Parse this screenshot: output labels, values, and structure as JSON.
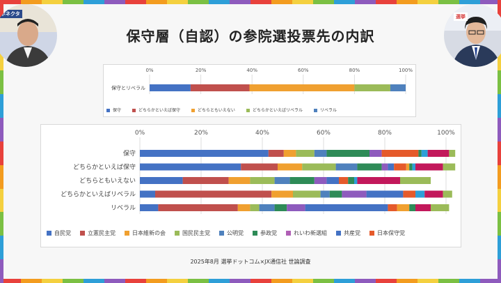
{
  "title": "保守層（自認）の参院選投票先の内訳",
  "footer": "2025年8月 選挙ドットコム×JX通信社 世論調査",
  "logo_text": "ボネクタ",
  "overlay_badge": "選挙",
  "colors": {
    "border": [
      "#e8413c",
      "#f39c1f",
      "#f4d03f",
      "#7bc043",
      "#2e9fd8",
      "#8e5bbd",
      "#e8413c",
      "#f39c1f",
      "#f4d03f",
      "#7bc043",
      "#2e9fd8",
      "#8e5bbd"
    ]
  },
  "chart_data": [
    {
      "type": "bar",
      "orientation": "horizontal",
      "stacked": true,
      "categories": [
        "保守とリベラル"
      ],
      "xlim": [
        0,
        100
      ],
      "xticks": [
        "0%",
        "20%",
        "40%",
        "60%",
        "80%",
        "100%"
      ],
      "grid": true,
      "legend_position": "bottom",
      "series": [
        {
          "name": "保守",
          "color": "#4472c4",
          "values": [
            16
          ]
        },
        {
          "name": "どちらかといえば保守",
          "color": "#c0504d",
          "values": [
            23
          ]
        },
        {
          "name": "どちらともいえない",
          "color": "#f0a030",
          "values": [
            41
          ]
        },
        {
          "name": "どちらかといえばリベラル",
          "color": "#9bbb59",
          "values": [
            14
          ]
        },
        {
          "name": "リベラル",
          "color": "#4f81bd",
          "values": [
            6
          ]
        }
      ]
    },
    {
      "type": "bar",
      "orientation": "horizontal",
      "stacked": true,
      "categories": [
        "保守",
        "どちらかといえば保守",
        "どちらともいえない",
        "どちらかといえばリベラル",
        "リベラル"
      ],
      "xlim": [
        0,
        100
      ],
      "xticks": [
        "0%",
        "20%",
        "40%",
        "60%",
        "80%",
        "100%"
      ],
      "grid": true,
      "legend_position": "bottom",
      "series": [
        {
          "name": "自民党",
          "color": "#4472c4",
          "values": [
            42,
            33,
            14,
            5,
            6
          ]
        },
        {
          "name": "",
          "color": "#c0504d",
          "values": [
            5,
            12,
            15,
            38,
            26
          ]
        },
        {
          "name": "",
          "color": "#f0a030",
          "values": [
            4,
            8,
            7,
            7,
            4
          ]
        },
        {
          "name": "",
          "color": "#9bbb59",
          "values": [
            6,
            11,
            8,
            9,
            3
          ]
        },
        {
          "name": "",
          "color": "#4f81bd",
          "values": [
            4,
            7,
            5,
            3,
            5
          ]
        },
        {
          "name": "",
          "color": "#2e8b57",
          "values": [
            14,
            8,
            8,
            4,
            4
          ]
        },
        {
          "name": "",
          "color": "#8e5bbd",
          "values": [
            4,
            2,
            4,
            8,
            6
          ]
        },
        {
          "name": "",
          "color": "#4472c4",
          "values": [
            0,
            2,
            4,
            12,
            27
          ]
        },
        {
          "name": "",
          "color": "#e55a2b",
          "values": [
            12,
            4,
            3,
            4,
            3
          ]
        },
        {
          "name": "",
          "color": "#f0a030",
          "values": [
            0,
            1,
            0,
            0,
            4
          ]
        },
        {
          "name": "",
          "color": "#2e8b57",
          "values": [
            1,
            1,
            2,
            0,
            2
          ]
        },
        {
          "name": "",
          "color": "#2e9fd8",
          "values": [
            2,
            1,
            1,
            3,
            0
          ]
        },
        {
          "name": "",
          "color": "#c2185b",
          "values": [
            7,
            9,
            14,
            6,
            5
          ]
        },
        {
          "name": "",
          "color": "#9bbb59",
          "values": [
            2,
            4,
            10,
            3,
            6
          ]
        }
      ],
      "legend": [
        {
          "name": "自民党",
          "color": "#4472c4"
        },
        {
          "name": "立憲民主党",
          "color": "#c0504d"
        },
        {
          "name": "日本維新の会",
          "color": "#f0a030"
        },
        {
          "name": "国民民主党",
          "color": "#9bbb59"
        },
        {
          "name": "公明党",
          "color": "#4f81bd"
        },
        {
          "name": "参政党",
          "color": "#2e8b57"
        },
        {
          "name": "れいわ新選組",
          "color": "#b05fb5"
        },
        {
          "name": "共産党",
          "color": "#4472c4"
        },
        {
          "name": "日本保守党",
          "color": "#e55a2b"
        }
      ]
    }
  ]
}
